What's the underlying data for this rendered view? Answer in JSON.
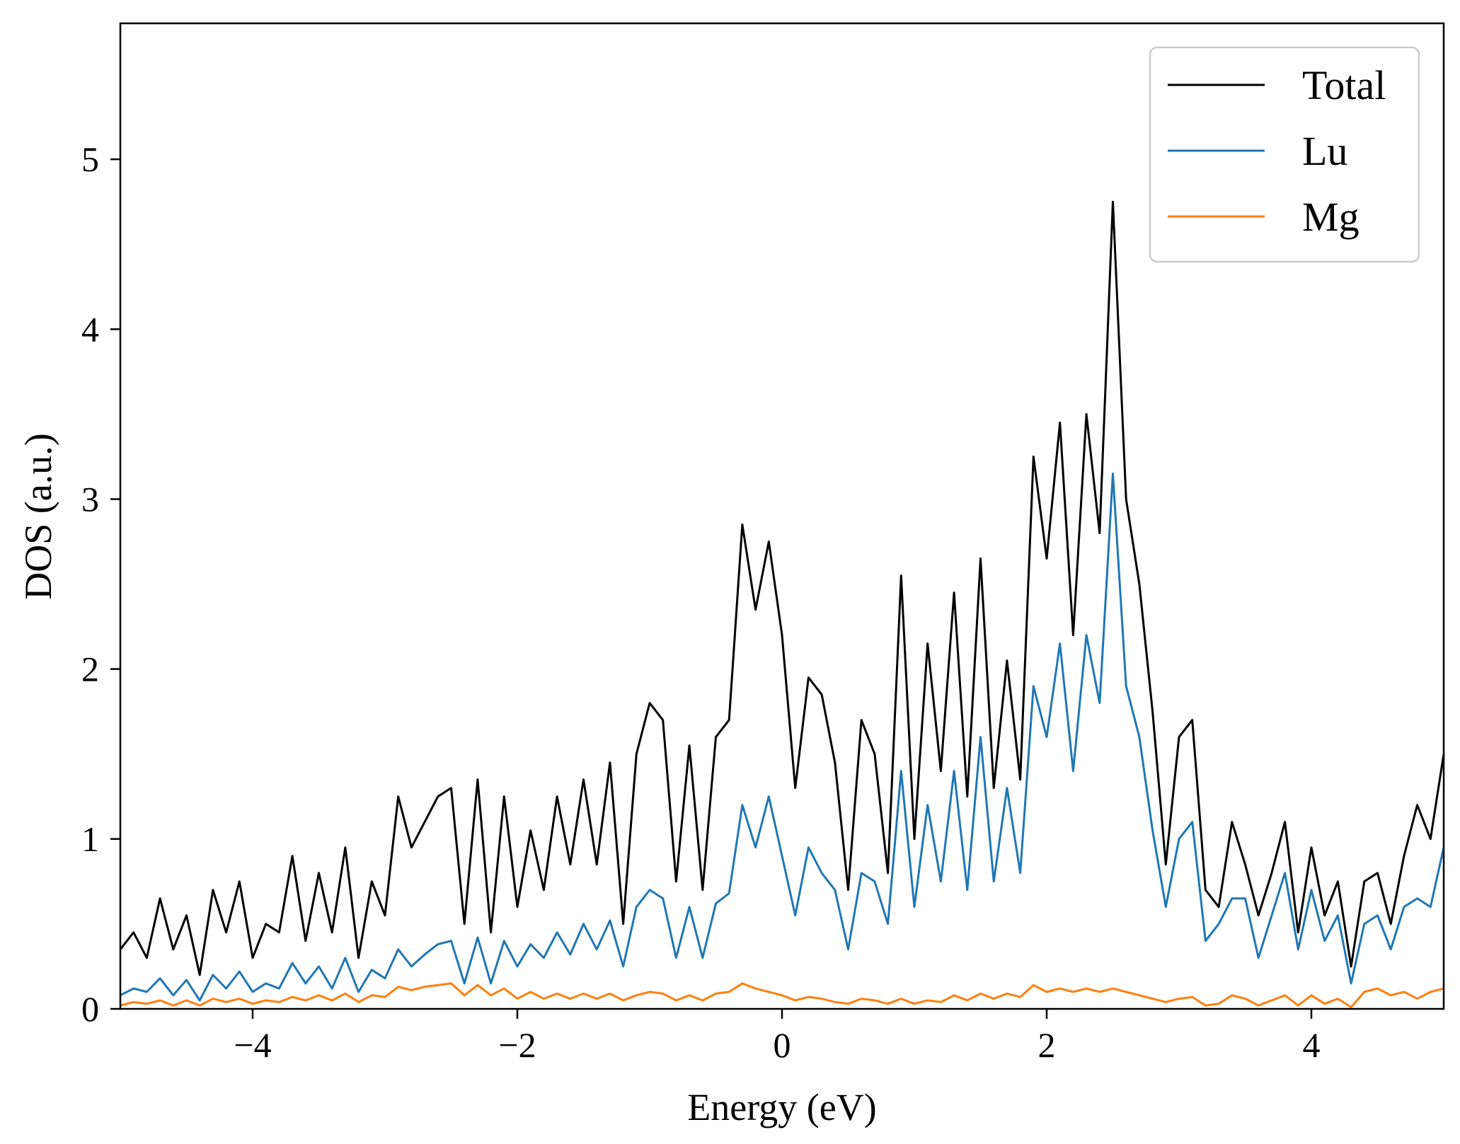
{
  "chart_data": {
    "type": "line",
    "title": "",
    "xlabel": "Energy (eV)",
    "ylabel": "DOS (a.u.)",
    "xlim": [
      -5,
      5
    ],
    "ylim": [
      0,
      5.8
    ],
    "x_ticks": [
      -4,
      -2,
      0,
      2,
      4
    ],
    "x_tick_labels": [
      "−4",
      "−2",
      "0",
      "2",
      "4"
    ],
    "y_ticks": [
      0,
      1,
      2,
      3,
      4,
      5
    ],
    "y_tick_labels": [
      "0",
      "1",
      "2",
      "3",
      "4",
      "5"
    ],
    "grid": false,
    "legend_position": "top-right",
    "x": [
      -5.0,
      -4.9,
      -4.8,
      -4.7,
      -4.6,
      -4.5,
      -4.4,
      -4.3,
      -4.2,
      -4.1,
      -4.0,
      -3.9,
      -3.8,
      -3.7,
      -3.6,
      -3.5,
      -3.4,
      -3.3,
      -3.2,
      -3.1,
      -3.0,
      -2.9,
      -2.8,
      -2.7,
      -2.6,
      -2.5,
      -2.4,
      -2.3,
      -2.2,
      -2.1,
      -2.0,
      -1.9,
      -1.8,
      -1.7,
      -1.6,
      -1.5,
      -1.4,
      -1.3,
      -1.2,
      -1.1,
      -1.0,
      -0.9,
      -0.8,
      -0.7,
      -0.6,
      -0.5,
      -0.4,
      -0.3,
      -0.2,
      -0.1,
      0.0,
      0.1,
      0.2,
      0.3,
      0.4,
      0.5,
      0.6,
      0.7,
      0.8,
      0.9,
      1.0,
      1.1,
      1.2,
      1.3,
      1.4,
      1.5,
      1.6,
      1.7,
      1.8,
      1.9,
      2.0,
      2.1,
      2.2,
      2.3,
      2.4,
      2.5,
      2.6,
      2.7,
      2.8,
      2.9,
      3.0,
      3.1,
      3.2,
      3.3,
      3.4,
      3.5,
      3.6,
      3.7,
      3.8,
      3.9,
      4.0,
      4.1,
      4.2,
      4.3,
      4.4,
      4.5,
      4.6,
      4.7,
      4.8,
      4.9,
      5.0
    ],
    "series": [
      {
        "name": "Total",
        "color": "#000000",
        "values": [
          0.35,
          0.45,
          0.3,
          0.65,
          0.35,
          0.55,
          0.2,
          0.7,
          0.45,
          0.75,
          0.3,
          0.5,
          0.45,
          0.9,
          0.4,
          0.8,
          0.45,
          0.95,
          0.3,
          0.75,
          0.55,
          1.25,
          0.95,
          1.1,
          1.25,
          1.3,
          0.5,
          1.35,
          0.45,
          1.25,
          0.6,
          1.05,
          0.7,
          1.25,
          0.85,
          1.35,
          0.85,
          1.45,
          0.5,
          1.5,
          1.8,
          1.7,
          0.75,
          1.55,
          0.7,
          1.6,
          1.7,
          2.85,
          2.35,
          2.75,
          2.2,
          1.3,
          1.95,
          1.85,
          1.45,
          0.7,
          1.7,
          1.5,
          0.8,
          2.55,
          1.0,
          2.15,
          1.4,
          2.45,
          1.25,
          2.65,
          1.3,
          2.05,
          1.35,
          3.25,
          2.65,
          3.45,
          2.2,
          3.5,
          2.8,
          4.75,
          3.0,
          2.5,
          1.75,
          0.85,
          1.6,
          1.7,
          0.7,
          0.6,
          1.1,
          0.85,
          0.55,
          0.8,
          1.1,
          0.45,
          0.95,
          0.55,
          0.75,
          0.25,
          0.75,
          0.8,
          0.5,
          0.9,
          1.2,
          1.0,
          1.5
        ]
      },
      {
        "name": "Lu",
        "color": "#1f77b4",
        "values": [
          0.08,
          0.12,
          0.1,
          0.18,
          0.08,
          0.17,
          0.05,
          0.2,
          0.12,
          0.22,
          0.1,
          0.15,
          0.12,
          0.27,
          0.15,
          0.25,
          0.12,
          0.3,
          0.1,
          0.23,
          0.18,
          0.35,
          0.25,
          0.32,
          0.38,
          0.4,
          0.15,
          0.42,
          0.15,
          0.4,
          0.25,
          0.38,
          0.3,
          0.45,
          0.32,
          0.5,
          0.35,
          0.52,
          0.25,
          0.6,
          0.7,
          0.65,
          0.3,
          0.6,
          0.3,
          0.62,
          0.68,
          1.2,
          0.95,
          1.25,
          0.9,
          0.55,
          0.95,
          0.8,
          0.7,
          0.35,
          0.8,
          0.75,
          0.5,
          1.4,
          0.6,
          1.2,
          0.75,
          1.4,
          0.7,
          1.6,
          0.75,
          1.3,
          0.8,
          1.9,
          1.6,
          2.15,
          1.4,
          2.2,
          1.8,
          3.15,
          1.9,
          1.6,
          1.05,
          0.6,
          1.0,
          1.1,
          0.4,
          0.5,
          0.65,
          0.65,
          0.3,
          0.55,
          0.8,
          0.35,
          0.7,
          0.4,
          0.55,
          0.15,
          0.5,
          0.55,
          0.35,
          0.6,
          0.65,
          0.6,
          0.95
        ]
      },
      {
        "name": "Mg",
        "color": "#ff7f0e",
        "values": [
          0.02,
          0.04,
          0.03,
          0.05,
          0.02,
          0.05,
          0.02,
          0.06,
          0.04,
          0.06,
          0.03,
          0.05,
          0.04,
          0.07,
          0.05,
          0.08,
          0.05,
          0.09,
          0.04,
          0.08,
          0.07,
          0.13,
          0.11,
          0.13,
          0.14,
          0.15,
          0.08,
          0.14,
          0.08,
          0.12,
          0.06,
          0.1,
          0.06,
          0.09,
          0.06,
          0.09,
          0.06,
          0.09,
          0.05,
          0.08,
          0.1,
          0.09,
          0.05,
          0.08,
          0.05,
          0.09,
          0.1,
          0.15,
          0.12,
          0.1,
          0.08,
          0.05,
          0.07,
          0.06,
          0.04,
          0.03,
          0.06,
          0.05,
          0.03,
          0.06,
          0.03,
          0.05,
          0.04,
          0.08,
          0.05,
          0.09,
          0.06,
          0.09,
          0.07,
          0.14,
          0.1,
          0.12,
          0.1,
          0.12,
          0.1,
          0.12,
          0.1,
          0.08,
          0.06,
          0.04,
          0.06,
          0.07,
          0.02,
          0.03,
          0.08,
          0.06,
          0.02,
          0.05,
          0.08,
          0.02,
          0.08,
          0.03,
          0.06,
          0.01,
          0.1,
          0.12,
          0.08,
          0.1,
          0.06,
          0.1,
          0.12
        ]
      }
    ]
  }
}
